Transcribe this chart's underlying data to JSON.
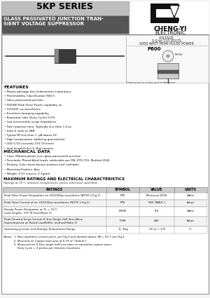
{
  "title_series": "5KP SERIES",
  "subtitle_line1": "GLASS PASSIVATED JUNCTION TRAN-",
  "subtitle_line2": "SIENT VOLTAGE SUPPRESSOR",
  "brand_name": "CHENG-YI",
  "brand_sub": "ELECTRONIC",
  "voltage_text1": "VOLTAGE",
  "voltage_text2": "5.0 to 110 VOLTS",
  "voltage_text3": "5000 WATT PEAK PULSE POWER",
  "pkg_label": "P600",
  "features_title": "FEATURES",
  "features": [
    "Plastic package has Underwriters Laboratory",
    "Flammability Classification 94V-0",
    "Glass passivated junction",
    "5000W Peak Pulse Power capability on",
    "10/1000  μs waveforms",
    "Excellent clamping capability",
    "Repetition rate (Duty Cycle) 0.5%",
    "Low incremental surge impedance",
    "Fast response time: Typically less than 1.0 ps",
    "from 0 volts to VBR",
    "Typical IR less than 1  μA above 5V",
    "High temperature soldering guaranteed:",
    "300°C/10 seconds/.375\"(9.5mm)",
    "lead length/5 lbs.(2.3kg) tension"
  ],
  "mech_title": "MECHANICAL DATA",
  "mech": [
    "Case: Molded plastic over glass passivated junction",
    "Terminals: Plated Axial leads, solderable per MIL-STD-750, Method 2026",
    "Polarity: Color band denote positive end (cathode)",
    "Mounting Position: Any",
    "Weight: 0.07 ounces, 2.1gram"
  ],
  "table_title": "MAXIMUM RATINGS AND ELECTRICAL CHARACTERISTICS",
  "table_subtitle": "Ratings at 25°C ambient temperature unless otherwise specified.",
  "table_headers": [
    "RATINGS",
    "SYMBOL",
    "VALUE",
    "UNITS"
  ],
  "table_rows": [
    [
      "Peak Pulse Power Dissipation on 10/1000μs waveforms (NOTE 1,Fig.1)",
      "PPK",
      "Minimum 5000",
      "Watts"
    ],
    [
      "Peak Pulse Current of on 10/1000μs waveforms (NOTE 1,Fig.2)",
      "PPK",
      "SEE TABLE 1",
      "Amps"
    ],
    [
      "Steady Power Dissipation at TL = 75°C\nLead lengths .375\"/9.5mm(Note 2)",
      "PRSM",
      "8.0",
      "Watts"
    ],
    [
      "Peak Forward Surge Current 8.3ms Single Half Sine-Wave\nSuperimposed on Rated Load(60Hz, method)(Note 3)",
      "IFSM",
      "400",
      "Amps"
    ],
    [
      "Operating Junction and Storage Temperature Range",
      "TJ, Tstg",
      "-55 to + 175",
      "°C"
    ]
  ],
  "notes": [
    "Notes:  1. Non-repetitive current pulse, per Fig.3 and derated above TA = 25°C per Fig.2",
    "            2. Mounted on Copper lead area of 0.79 in² (20mm²)",
    "            3. Measured on 8.3ms single half sine wave to equivalent square wave,",
    "                Duty Cycle = 4 pulses per minutes maximum."
  ],
  "bg_color": "#f5f5f5",
  "header_light_bg": "#bebebe",
  "header_dark_bg": "#555555",
  "text_color": "#000000",
  "white": "#ffffff"
}
